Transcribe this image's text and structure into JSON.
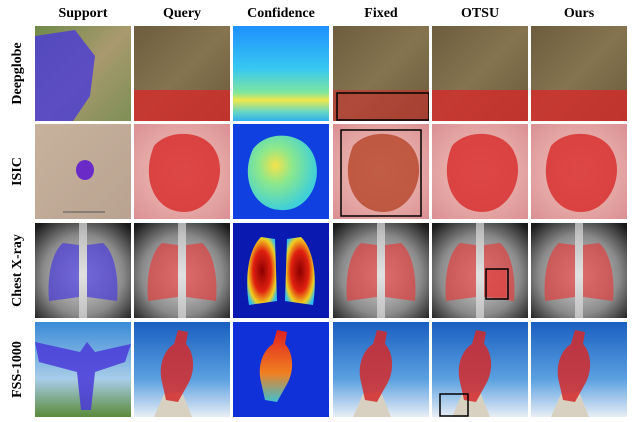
{
  "columns": [
    "Support",
    "Query",
    "Confidence",
    "Fixed",
    "OTSU",
    "Ours"
  ],
  "rows": [
    "Deepglobe",
    "ISIC",
    "Chest X-ray",
    "FSS-1000"
  ]
}
